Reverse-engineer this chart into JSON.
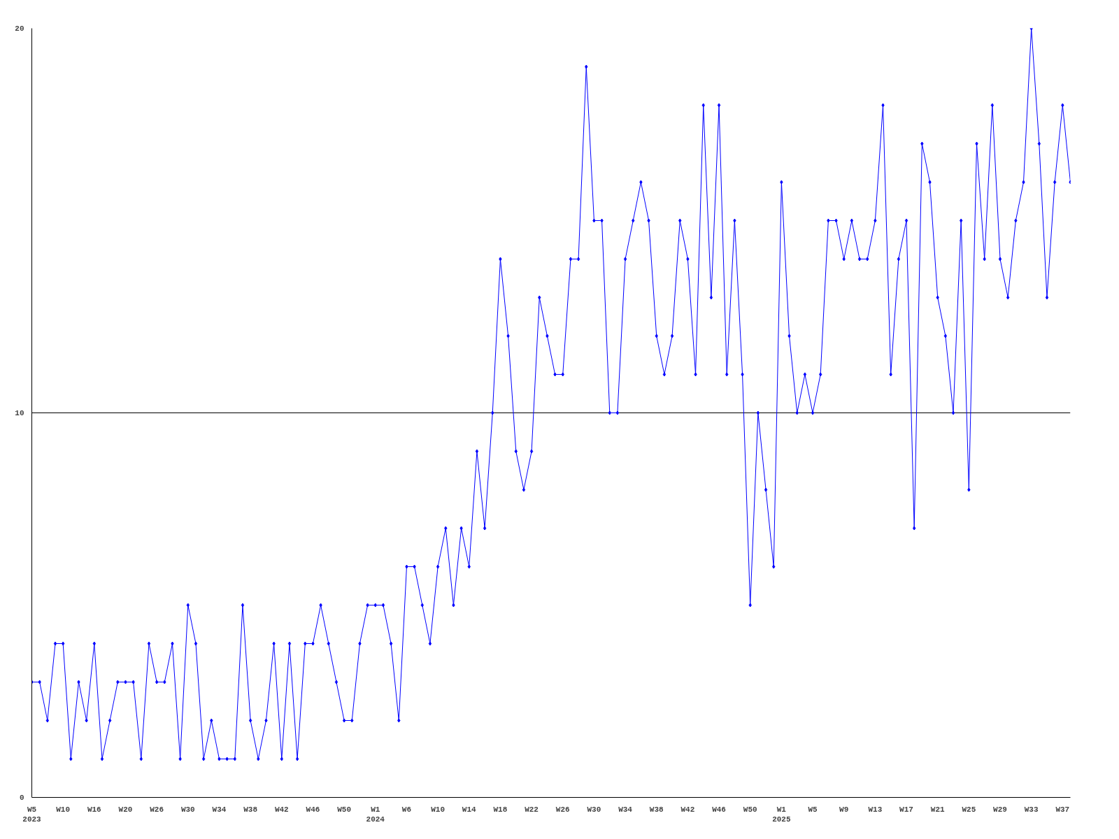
{
  "chart_data": {
    "type": "line",
    "categories": [
      "W5\n2023",
      null,
      null,
      null,
      "W10",
      null,
      null,
      null,
      "W16",
      null,
      null,
      null,
      "W20",
      null,
      null,
      null,
      "W26",
      null,
      null,
      null,
      "W30",
      null,
      null,
      null,
      "W34",
      null,
      null,
      null,
      "W38",
      null,
      null,
      null,
      "W42",
      null,
      null,
      null,
      "W46",
      null,
      null,
      null,
      "W50",
      null,
      null,
      null,
      "W1\n2024",
      null,
      null,
      null,
      "W6",
      null,
      null,
      null,
      "W10",
      null,
      null,
      null,
      "W14",
      null,
      null,
      null,
      "W18",
      null,
      null,
      null,
      "W22",
      null,
      null,
      null,
      "W26",
      null,
      null,
      null,
      "W30",
      null,
      null,
      null,
      "W34",
      null,
      null,
      null,
      "W38",
      null,
      null,
      null,
      "W42",
      null,
      null,
      null,
      "W46",
      null,
      null,
      null,
      "W50",
      null,
      null,
      null,
      "W1\n2025",
      null,
      null,
      null,
      "W5",
      null,
      null,
      null,
      "W9",
      null,
      null,
      null,
      "W13",
      null,
      null,
      null,
      "W17",
      null,
      null,
      null,
      "W21",
      null,
      null,
      null,
      "W25",
      null,
      null,
      null,
      "W29",
      null,
      null,
      null,
      "W33",
      null,
      null,
      null,
      "W37",
      null
    ],
    "series": [
      {
        "color": "#0000ff",
        "values": [
          3,
          3,
          2,
          4,
          4,
          1,
          3,
          2,
          4,
          1,
          2,
          3,
          3,
          3,
          1,
          4,
          3,
          3,
          4,
          1,
          5,
          4,
          1,
          2,
          1,
          1,
          1,
          5,
          2,
          1,
          2,
          4,
          1,
          4,
          1,
          4,
          4,
          5,
          4,
          3,
          2,
          2,
          4,
          5,
          5,
          5,
          4,
          2,
          6,
          6,
          5,
          4,
          6,
          7,
          5,
          7,
          6,
          9,
          7,
          10,
          14,
          12,
          9,
          8,
          9,
          13,
          12,
          11,
          11,
          14,
          14,
          19,
          15,
          15,
          10,
          10,
          14,
          15,
          16,
          15,
          12,
          11,
          12,
          15,
          14,
          11,
          18,
          13,
          18,
          11,
          15,
          11,
          5,
          10,
          8,
          6,
          16,
          12,
          10,
          11,
          10,
          11,
          15,
          15,
          14,
          15,
          14,
          14,
          15,
          18,
          11,
          14,
          15,
          7,
          17,
          16,
          13,
          12,
          10,
          15,
          8,
          17,
          14,
          18,
          14,
          13,
          15,
          16,
          20,
          17,
          13,
          16,
          18,
          16
        ]
      }
    ],
    "ylim": [
      0,
      20
    ],
    "yticks": [
      0,
      10,
      20
    ],
    "grid": "y",
    "marker": "diamond",
    "line_style": "solid"
  }
}
